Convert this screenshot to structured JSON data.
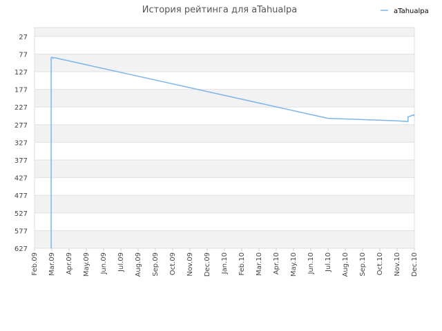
{
  "chart_data": {
    "type": "line",
    "title": "История рейтинга для aTahualpa",
    "xlabel": "",
    "ylabel": "",
    "x_ticks": [
      "Feb.09",
      "Mar.09",
      "Apr.09",
      "May.09",
      "Jun.09",
      "Jul.09",
      "Aug.09",
      "Sep.09",
      "Oct.09",
      "Nov.09",
      "Dec.09",
      "Jan.10",
      "Feb.10",
      "Mar.10",
      "Apr.10",
      "May.10",
      "Jun.10",
      "Jul.10",
      "Aug.10",
      "Sep.10",
      "Oct.10",
      "Nov.10",
      "Dec.10"
    ],
    "y_ticks": [
      27,
      77,
      127,
      177,
      227,
      277,
      327,
      377,
      427,
      477,
      527,
      577,
      627
    ],
    "ylim": [
      627,
      2
    ],
    "y_reversed": true,
    "grid": true,
    "legend_position": "top-right",
    "series": [
      {
        "name": "aTahualpa",
        "color": "#7cb5ec",
        "points": [
          [
            "2009-02-28",
            627
          ],
          [
            "2009-02-28",
            87
          ],
          [
            "2009-03-02",
            86
          ],
          [
            "2009-03-03",
            89
          ],
          [
            "2009-03-04",
            88
          ],
          [
            "2009-03-05",
            87
          ],
          [
            "2010-07-01",
            259
          ],
          [
            "2010-11-01",
            266
          ],
          [
            "2010-11-20",
            268
          ],
          [
            "2010-11-20",
            255
          ],
          [
            "2010-11-30",
            249
          ],
          [
            "2010-12-01",
            253
          ]
        ]
      }
    ]
  },
  "legend": {
    "label": "aTahualpa",
    "color": "#7cb5ec"
  }
}
